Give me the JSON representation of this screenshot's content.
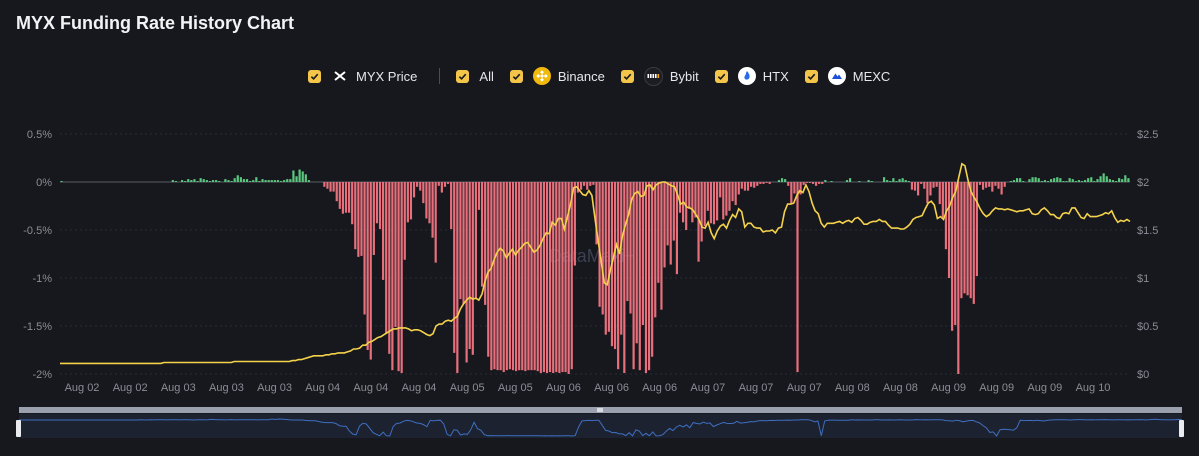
{
  "title": "MYX Funding Rate History Chart",
  "legend": {
    "items": [
      {
        "label": "MYX Price",
        "icon": "myx-logo-icon"
      },
      {
        "label": "All",
        "icon": ""
      },
      {
        "label": "Binance",
        "icon": "binance-logo-icon"
      },
      {
        "label": "Bybit",
        "icon": "bybit-logo-icon"
      },
      {
        "label": "HTX",
        "icon": "htx-logo-icon"
      },
      {
        "label": "MEXC",
        "icon": "mexc-logo-icon"
      }
    ]
  },
  "watermark": "DataMaxi+",
  "colors": {
    "background": "#16181d",
    "positive": "#5cc87f",
    "negative": "#e8707c",
    "price_line": "#f5d24c",
    "grid": "#2a2d35",
    "checkbox": "#f3c64a"
  },
  "chart_data": {
    "type": "bar",
    "title": "MYX Funding Rate History Chart",
    "y_left": {
      "label": "",
      "ticks": [
        "0.5%",
        "0%",
        "-0.5%",
        "-1%",
        "-1.5%",
        "-2%"
      ],
      "range": [
        -2.0,
        0.5
      ]
    },
    "y_right": {
      "label": "",
      "ticks": [
        "$2.5",
        "$2",
        "$1.5",
        "$1",
        "$0.5",
        "$0"
      ],
      "range": [
        0,
        2.5
      ]
    },
    "x_ticks": [
      "Aug 02",
      "Aug 02",
      "Aug 03",
      "Aug 03",
      "Aug 03",
      "Aug 04",
      "Aug 04",
      "Aug 04",
      "Aug 05",
      "Aug 05",
      "Aug 06",
      "Aug 06",
      "Aug 06",
      "Aug 07",
      "Aug 07",
      "Aug 07",
      "Aug 08",
      "Aug 08",
      "Aug 09",
      "Aug 09",
      "Aug 09",
      "Aug 10"
    ],
    "series": [
      {
        "name": "All",
        "unit": "%",
        "values": [
          0.01,
          0,
          0,
          0,
          0,
          0,
          0,
          0,
          0,
          0,
          0,
          0,
          0,
          0,
          0,
          0,
          0,
          0,
          0,
          0,
          0,
          0,
          0,
          0,
          0,
          0,
          0,
          0,
          0,
          0,
          0,
          0,
          0,
          0,
          0,
          0,
          0.02,
          0.01,
          0,
          0.02,
          0.01,
          0.03,
          0.02,
          0.03,
          0.01,
          0.04,
          0.03,
          0.02,
          0.01,
          0.02,
          0.02,
          0.01,
          0,
          0.03,
          0.02,
          0.01,
          0.04,
          0.07,
          0.05,
          0.03,
          0.03,
          0.01,
          0.02,
          0.05,
          0.01,
          0.03,
          0.02,
          0.02,
          0.02,
          0.02,
          0.02,
          0.01,
          0.02,
          0.03,
          0.03,
          0.12,
          0.06,
          0.13,
          0.11,
          0.08,
          0.02,
          0,
          0,
          0,
          0,
          -0.05,
          -0.07,
          -0.1,
          -0.1,
          -0.2,
          -0.28,
          -0.33,
          -0.32,
          -0.32,
          -0.44,
          -0.7,
          -0.78,
          -0.77,
          -1.38,
          -1.75,
          -1.85,
          -0.76,
          -0.43,
          -0.49,
          -1.02,
          -1.58,
          -1.79,
          -1.96,
          -1.51,
          -1.97,
          -1.99,
          -0.81,
          -0.42,
          -0.39,
          -0.16,
          -0.05,
          -0.09,
          -0.22,
          -0.38,
          -0.43,
          -0.58,
          -0.84,
          -0.04,
          -0.11,
          -0.05,
          -0.02,
          -0.49,
          -1.78,
          -1.99,
          -1.22,
          -1.27,
          -1.88,
          -1.74,
          -1.8,
          -1.22,
          -0.29,
          -1.09,
          -1.28,
          -1.82,
          -1.96,
          -1.95,
          -1.96,
          -1.96,
          -1.98,
          -1.96,
          -1.95,
          -1.96,
          -1.97,
          -1.96,
          -1.96,
          -1.97,
          -1.96,
          -1.96,
          -1.96,
          -1.97,
          -1.99,
          -1.98,
          -1.99,
          -1.98,
          -1.99,
          -1.98,
          -1.99,
          -1.98,
          -1.98,
          -2,
          -1.95,
          -0.87,
          -0.11,
          -0.08,
          -0.04,
          -0.08,
          -0.04,
          -0.03,
          -0.65,
          -1.3,
          -1.38,
          -1.59,
          -1.56,
          -1.71,
          -1.74,
          -1.95,
          -1.59,
          -1.99,
          -1.24,
          -1.37,
          -1.95,
          -1.68,
          -1.96,
          -1.49,
          -1.99,
          -1.96,
          -1.82,
          -1.41,
          -1.05,
          -1.33,
          -0.89,
          -0.66,
          -0.86,
          -0.61,
          -0.96,
          -0.32,
          -0.42,
          -0.5,
          -0.28,
          -0.42,
          -0.37,
          -0.83,
          -0.62,
          -0.46,
          -0.3,
          -0.43,
          -0.44,
          -0.4,
          -0.16,
          -0.39,
          -0.35,
          -0.3,
          -0.2,
          -0.24,
          -0.13,
          -0.07,
          -0.09,
          -0.09,
          -0.05,
          -0.06,
          -0.04,
          -0.02,
          -0.02,
          -0.01,
          -0.02,
          0,
          0,
          0.02,
          0.04,
          0.03,
          -0.04,
          -0.23,
          -0.12,
          -1.98,
          -0.13,
          -0.03,
          -0.01,
          -0.01,
          -0.02,
          -0.04,
          -0.02,
          -0.02,
          0.02,
          0,
          0.01,
          0,
          0,
          0,
          0,
          0.02,
          0.04,
          0,
          0,
          0.01,
          0,
          0,
          0.02,
          0.01,
          0,
          0,
          0,
          0.05,
          0.02,
          0.01,
          0.04,
          0.01,
          0.03,
          0.04,
          0.02,
          0.01,
          -0.08,
          -0.09,
          -0.14,
          -0.02,
          -0.07,
          -0.22,
          -0.14,
          -0.06,
          -0.05,
          -0.23,
          -0.37,
          -0.7,
          -1.0,
          -1.55,
          -1.49,
          -2.0,
          -1.21,
          -1.16,
          -1.18,
          -1.21,
          -1.27,
          -0.98,
          -0.03,
          -0.08,
          -0.06,
          -0.05,
          -0.1,
          -0.04,
          -0.07,
          -0.13,
          -0.05,
          0,
          0.01,
          0.02,
          0.04,
          0.04,
          0.01,
          0,
          0.03,
          0.05,
          0.05,
          0.04,
          0.01,
          0.02,
          0.01,
          0.03,
          0.04,
          0.05,
          0.04,
          0.01,
          0.01,
          0.04,
          0.03,
          0.01,
          0.02,
          0.01,
          0.02,
          0.04,
          0.05,
          0.01,
          0.03,
          0.06,
          0.09,
          0.06,
          0.03,
          0.02,
          0.01,
          0.04,
          0.03,
          0.07,
          0.04
        ]
      },
      {
        "name": "MYX Price",
        "unit": "$",
        "values": [
          0.11,
          0.11,
          0.11,
          0.11,
          0.11,
          0.11,
          0.11,
          0.11,
          0.11,
          0.11,
          0.11,
          0.11,
          0.11,
          0.11,
          0.11,
          0.11,
          0.11,
          0.11,
          0.11,
          0.11,
          0.11,
          0.11,
          0.11,
          0.11,
          0.11,
          0.11,
          0.11,
          0.11,
          0.11,
          0.11,
          0.11,
          0.11,
          0.11,
          0.11,
          0.12,
          0.12,
          0.12,
          0.12,
          0.12,
          0.12,
          0.12,
          0.12,
          0.12,
          0.12,
          0.12,
          0.12,
          0.12,
          0.12,
          0.12,
          0.12,
          0.12,
          0.12,
          0.12,
          0.12,
          0.12,
          0.12,
          0.12,
          0.13,
          0.13,
          0.13,
          0.13,
          0.13,
          0.13,
          0.13,
          0.13,
          0.13,
          0.13,
          0.13,
          0.13,
          0.13,
          0.13,
          0.13,
          0.13,
          0.13,
          0.13,
          0.13,
          0.14,
          0.14,
          0.15,
          0.15,
          0.16,
          0.17,
          0.18,
          0.19,
          0.19,
          0.19,
          0.19,
          0.2,
          0.2,
          0.21,
          0.21,
          0.22,
          0.22,
          0.22,
          0.23,
          0.24,
          0.26,
          0.26,
          0.27,
          0.3,
          0.3,
          0.33,
          0.34,
          0.36,
          0.38,
          0.39,
          0.41,
          0.43,
          0.45,
          0.47,
          0.47,
          0.48,
          0.48,
          0.48,
          0.47,
          0.45,
          0.46,
          0.46,
          0.45,
          0.43,
          0.41,
          0.4,
          0.42,
          0.5,
          0.52,
          0.52,
          0.55,
          0.56,
          0.55,
          0.58,
          0.6,
          0.68,
          0.73,
          0.77,
          0.8,
          0.78,
          0.79,
          0.77,
          0.83,
          0.96,
          1.06,
          1.1,
          1.19,
          1.27,
          1.31,
          1.28,
          1.21,
          1.26,
          1.3,
          1.24,
          1.29,
          1.32,
          1.36,
          1.37,
          1.32,
          1.27,
          1.29,
          1.34,
          1.41,
          1.47,
          1.46,
          1.58,
          1.55,
          1.62,
          1.62,
          1.51,
          1.64,
          1.77,
          1.94,
          1.95,
          1.91,
          1.87,
          1.86,
          1.91,
          1.86,
          1.62,
          1.39,
          1.18,
          0.95,
          0.93,
          1.08,
          1.21,
          1.35,
          1.25,
          1.44,
          1.56,
          1.66,
          1.82,
          1.88,
          1.9,
          1.85,
          1.86,
          1.96,
          1.97,
          1.92,
          1.97,
          1.99,
          2.0,
          2.0,
          1.98,
          1.96,
          1.95,
          1.87,
          1.77,
          1.79,
          1.74,
          1.73,
          1.71,
          1.66,
          1.61,
          1.53,
          1.52,
          1.58,
          1.47,
          1.41,
          1.49,
          1.54,
          1.56,
          1.52,
          1.6,
          1.66,
          1.63,
          1.72,
          1.69,
          1.53,
          1.57,
          1.57,
          1.53,
          1.52,
          1.52,
          1.48,
          1.49,
          1.49,
          1.5,
          1.47,
          1.52,
          1.53,
          1.69,
          1.77,
          1.77,
          1.78,
          1.86,
          1.91,
          1.89,
          1.97,
          1.9,
          1.78,
          1.7,
          1.67,
          1.57,
          1.53,
          1.57,
          1.57,
          1.57,
          1.58,
          1.59,
          1.57,
          1.59,
          1.6,
          1.58,
          1.62,
          1.63,
          1.6,
          1.56,
          1.56,
          1.58,
          1.59,
          1.59,
          1.61,
          1.59,
          1.59,
          1.55,
          1.52,
          1.52,
          1.52,
          1.51,
          1.51,
          1.53,
          1.56,
          1.61,
          1.63,
          1.64,
          1.65,
          1.72,
          1.78,
          1.8,
          1.76,
          1.62,
          1.64,
          1.61,
          1.7,
          1.75,
          1.84,
          1.9,
          2.05,
          2.19,
          2.17,
          2.02,
          1.9,
          1.84,
          1.79,
          1.72,
          1.67,
          1.64,
          1.66,
          1.7,
          1.73,
          1.72,
          1.72,
          1.71,
          1.72,
          1.71,
          1.7,
          1.69,
          1.7,
          1.7,
          1.71,
          1.72,
          1.67,
          1.66,
          1.67,
          1.71,
          1.73,
          1.7,
          1.66,
          1.66,
          1.63,
          1.62,
          1.67,
          1.68,
          1.67,
          1.73,
          1.73,
          1.68,
          1.63,
          1.62,
          1.67,
          1.64,
          1.64,
          1.64,
          1.65,
          1.66,
          1.68,
          1.67,
          1.7,
          1.63,
          1.58,
          1.6,
          1.59,
          1.61,
          1.59
        ]
      }
    ],
    "grid": true,
    "legend_position": "top-center"
  }
}
